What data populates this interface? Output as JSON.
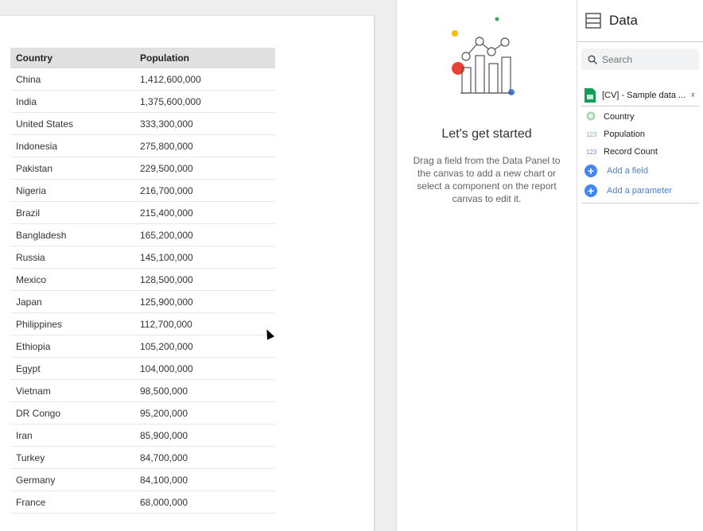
{
  "table": {
    "headers": [
      "Country",
      "Population"
    ],
    "rows": [
      [
        "China",
        "1,412,600,000"
      ],
      [
        "India",
        "1,375,600,000"
      ],
      [
        "United States",
        "333,300,000"
      ],
      [
        "Indonesia",
        "275,800,000"
      ],
      [
        "Pakistan",
        "229,500,000"
      ],
      [
        "Nigeria",
        "216,700,000"
      ],
      [
        "Brazil",
        "215,400,000"
      ],
      [
        "Bangladesh",
        "165,200,000"
      ],
      [
        "Russia",
        "145,100,000"
      ],
      [
        "Mexico",
        "128,500,000"
      ],
      [
        "Japan",
        "125,900,000"
      ],
      [
        "Philippines",
        "112,700,000"
      ],
      [
        "Ethiopia",
        "105,200,000"
      ],
      [
        "Egypt",
        "104,000,000"
      ],
      [
        "Vietnam",
        "98,500,000"
      ],
      [
        "DR Congo",
        "95,200,000"
      ],
      [
        "Iran",
        "85,900,000"
      ],
      [
        "Turkey",
        "84,700,000"
      ],
      [
        "Germany",
        "84,100,000"
      ],
      [
        "France",
        "68,000,000"
      ]
    ]
  },
  "empty_state": {
    "title": "Let's get started",
    "text": "Drag a field from the Data Panel to the canvas to add a new chart or select a component on the report canvas to edit it."
  },
  "data_panel": {
    "title": "Data",
    "search_placeholder": "Search",
    "source": "[CV] - Sample data ...",
    "fields": [
      {
        "icon": "globe-icon",
        "type": "",
        "label": "Country"
      },
      {
        "icon": "number-icon",
        "type": "123",
        "label": "Population"
      },
      {
        "icon": "number-icon",
        "type": "123",
        "label": "Record Count"
      }
    ],
    "add_field": "Add a field",
    "add_parameter": "Add a parameter"
  },
  "colors": {
    "accent": "#4285f4",
    "header_bg": "#e0e0e0"
  }
}
